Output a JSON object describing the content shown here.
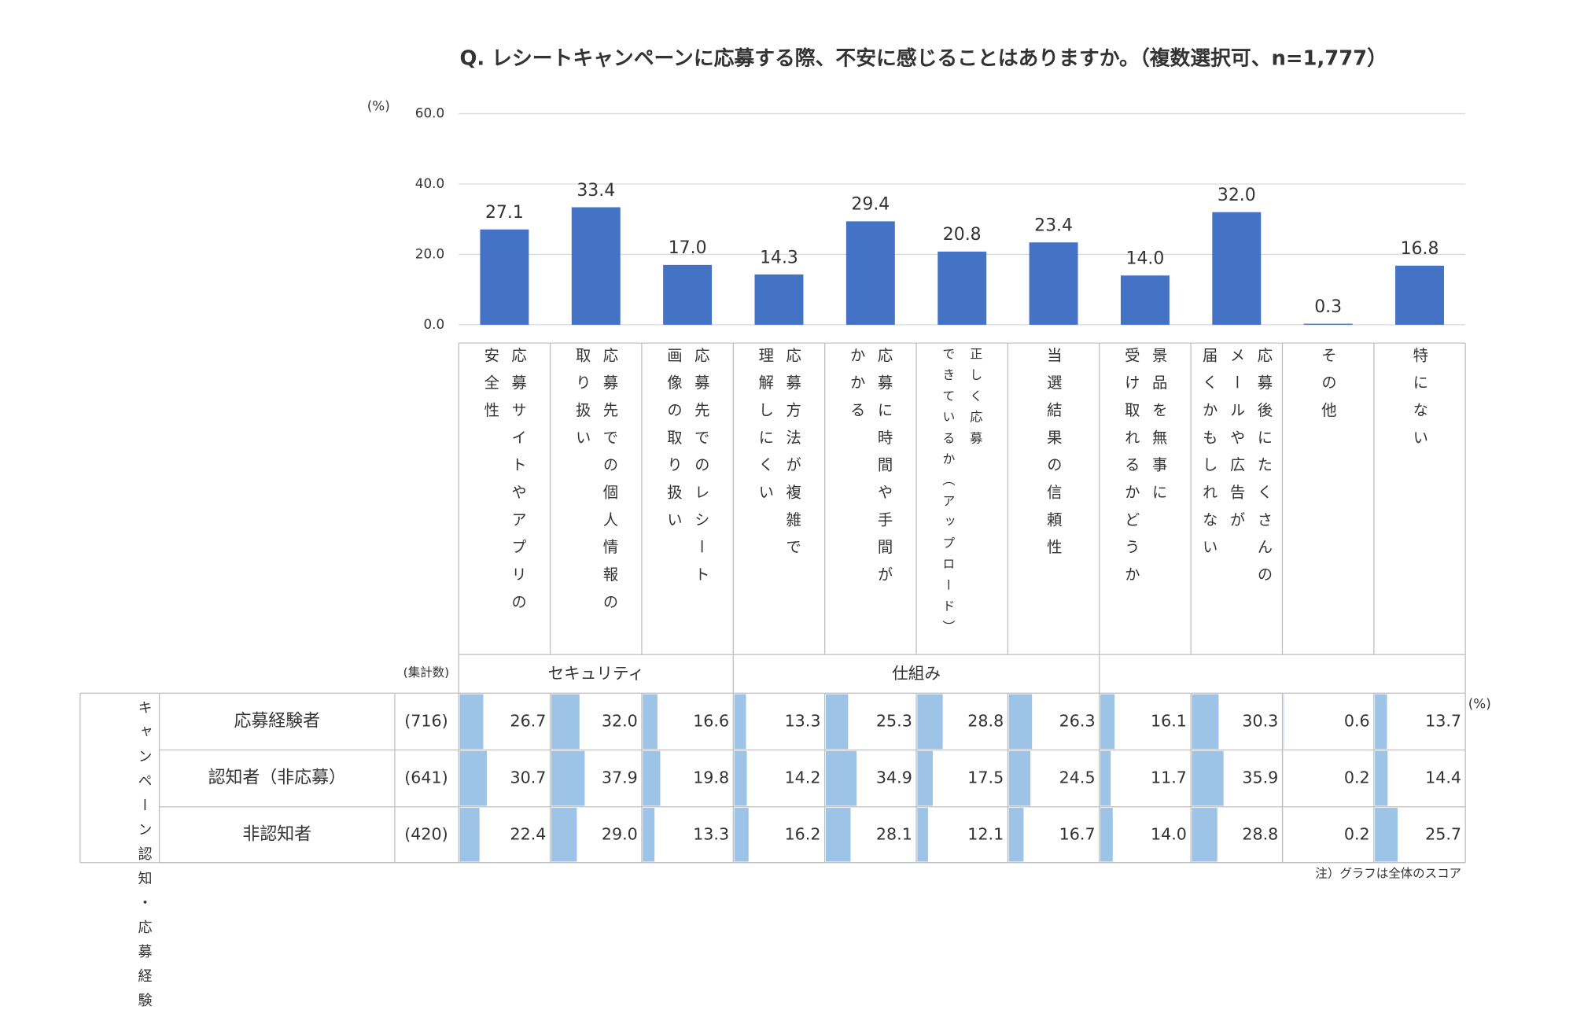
{
  "chart_data": {
    "type": "bar",
    "title": "Q. レシートキャンペーンに応募する際、不安に感じることはありますか。（複数選択可、n=1,777）",
    "y_unit": "(%)",
    "categories": [
      "応募サイトやアプリの\n安全性",
      "応募先での個人情報の\n取り扱い",
      "応募先でのレシート\n画像の取り扱い",
      "応募方法が複雑で\n理解しにくい",
      "応募に時間や手間が\nかかる",
      "正しく応募\nできているか（アップロード）",
      "当選結果の信頼性",
      "景品を無事に\n受け取れるかどうか",
      "応募後にたくさんの\nメールや広告が\n届くかもしれない",
      "その他",
      "特にない"
    ],
    "values": [
      27.1,
      33.4,
      17.0,
      14.3,
      29.4,
      20.8,
      23.4,
      14.0,
      32.0,
      0.3,
      16.8
    ],
    "value_labels": [
      "27.1",
      "33.4",
      "17.0",
      "14.3",
      "29.4",
      "20.8",
      "23.4",
      "14.0",
      "32.0",
      "0.3",
      "16.8"
    ],
    "color": "#4472c4",
    "ylim": [
      0,
      60
    ],
    "yticks": [
      {
        "value": 0,
        "label": "0.0"
      },
      {
        "value": 20,
        "label": "20.0"
      },
      {
        "value": 40,
        "label": "40.0"
      },
      {
        "value": 60,
        "label": "60.0"
      }
    ],
    "grid": true
  },
  "table": {
    "count_label": "(集計数)",
    "groups": [
      "セキュリティ",
      "仕組み"
    ],
    "group_label": "キャンペーン認知・応募経験",
    "unit": "(%)",
    "bar_color": "#9dc3e6",
    "rows": [
      {
        "label": "応募経験者",
        "n": "(716)",
        "values": [
          26.7,
          32.0,
          16.6,
          13.3,
          25.3,
          28.8,
          26.3,
          16.1,
          30.3,
          0.6,
          13.7
        ],
        "value_labels": [
          "26.7",
          "32.0",
          "16.6",
          "13.3",
          "25.3",
          "28.8",
          "26.3",
          "16.1",
          "30.3",
          "0.6",
          "13.7"
        ]
      },
      {
        "label": "認知者（非応募）",
        "n": "(641)",
        "values": [
          30.7,
          37.9,
          19.8,
          14.2,
          34.9,
          17.5,
          24.5,
          11.7,
          35.9,
          0.2,
          14.4
        ],
        "value_labels": [
          "30.7",
          "37.9",
          "19.8",
          "14.2",
          "34.9",
          "17.5",
          "24.5",
          "11.7",
          "35.9",
          "0.2",
          "14.4"
        ]
      },
      {
        "label": "非認知者",
        "n": "(420)",
        "values": [
          22.4,
          29.0,
          13.3,
          16.2,
          28.1,
          12.1,
          16.7,
          14.0,
          28.8,
          0.2,
          25.7
        ],
        "value_labels": [
          "22.4",
          "29.0",
          "13.3",
          "16.2",
          "28.1",
          "12.1",
          "16.7",
          "14.0",
          "28.8",
          "0.2",
          "25.7"
        ]
      }
    ],
    "note": "注）グラフは全体のスコア"
  }
}
